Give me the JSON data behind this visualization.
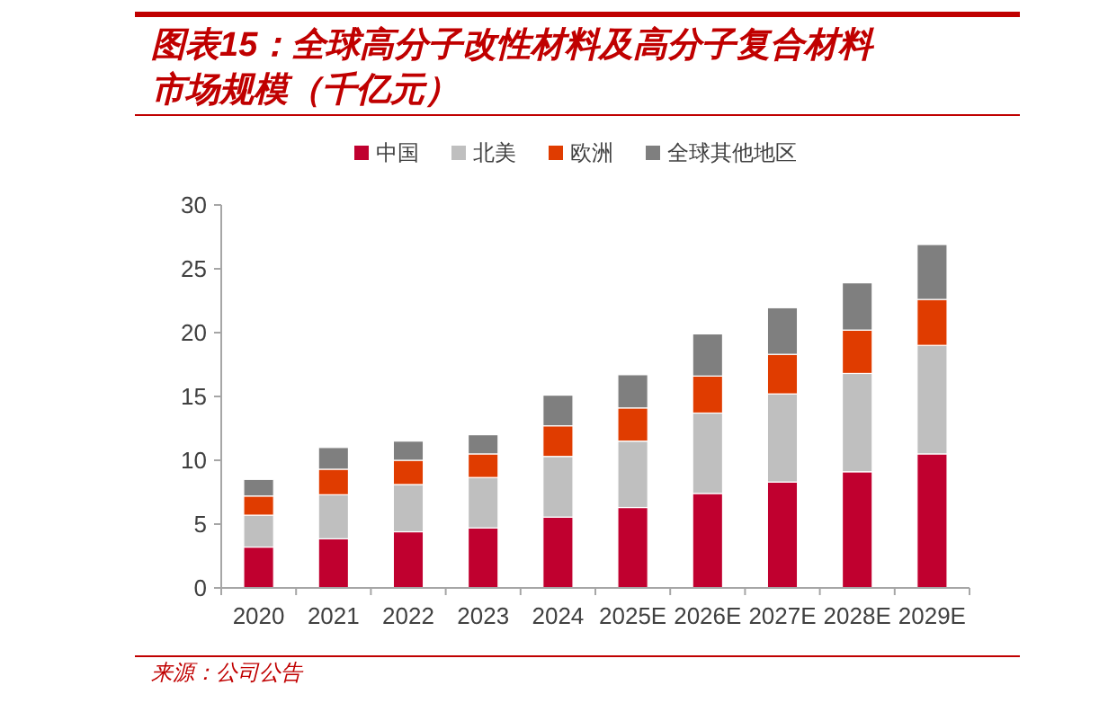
{
  "chart_data": {
    "type": "bar",
    "stacked": true,
    "title": "图表15：全球高分子改性材料及高分子复合材料市场规模（千亿元）",
    "categories": [
      "2020",
      "2021",
      "2022",
      "2023",
      "2024",
      "2025E",
      "2026E",
      "2027E",
      "2028E",
      "2029E"
    ],
    "series": [
      {
        "name": "中国",
        "color": "#c0002f",
        "values": [
          3.2,
          3.85,
          4.4,
          4.7,
          5.55,
          6.3,
          7.4,
          8.3,
          9.1,
          10.5
        ]
      },
      {
        "name": "北美",
        "color": "#bfbfbf",
        "values": [
          2.5,
          3.45,
          3.7,
          3.95,
          4.75,
          5.2,
          6.3,
          6.9,
          7.7,
          8.5
        ]
      },
      {
        "name": "欧洲",
        "color": "#e03c00",
        "values": [
          1.5,
          2.0,
          1.9,
          1.85,
          2.4,
          2.6,
          2.9,
          3.1,
          3.4,
          3.6
        ]
      },
      {
        "name": "全球其他地区",
        "color": "#7f7f7f",
        "values": [
          1.3,
          1.7,
          1.5,
          1.5,
          2.4,
          2.6,
          3.3,
          3.65,
          3.7,
          4.3
        ]
      }
    ],
    "ylim": [
      0,
      30
    ],
    "yticks": [
      0,
      5,
      10,
      15,
      20,
      25,
      30
    ],
    "legend": "top",
    "grid": false,
    "annotations": [
      "来源：公司公告"
    ]
  }
}
